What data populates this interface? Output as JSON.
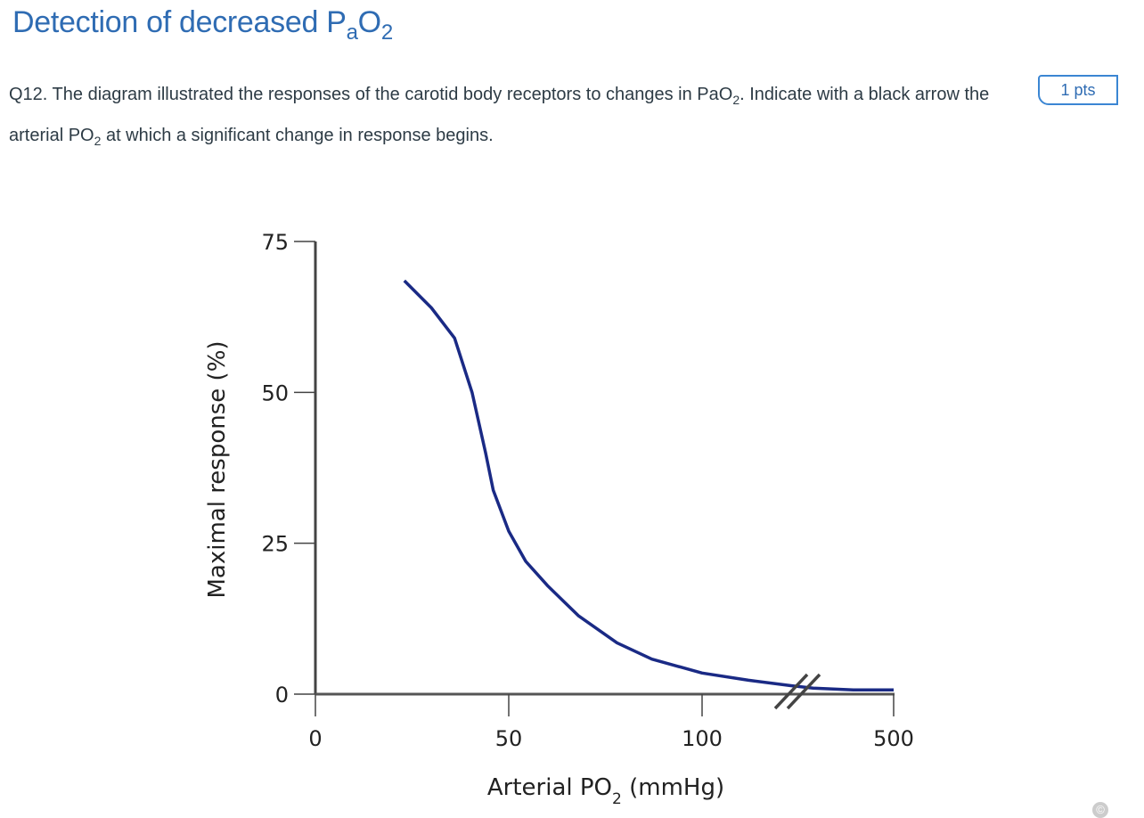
{
  "header": {
    "title": "Detection of decreased P",
    "title_sub": "a",
    "title_end": "O",
    "title_sub2": "2"
  },
  "question": {
    "part1": "Q12. The diagram illustrated the responses of the carotid body receptors to changes in PaO",
    "sub1": "2",
    "part2": ". Indicate with a black arrow the arterial PO",
    "sub2": "2",
    "part3": " at which a significant change in response begins.",
    "points": "1 pts"
  },
  "chart_data": {
    "type": "line",
    "xlabel": "Arterial PO",
    "xlabel_sub": "2",
    "xlabel_unit": " (mmHg)",
    "ylabel": "Maximal response (%)",
    "x_ticks": [
      "0",
      "50",
      "100",
      "500"
    ],
    "y_ticks": [
      "0",
      "25",
      "50",
      "75"
    ],
    "ylim": [
      0,
      75
    ],
    "axis_break": "between 100 and 500",
    "grid": false,
    "series": [
      {
        "color": "#1a2a85",
        "points": [
          {
            "x": 23,
            "y": 68.5
          },
          {
            "x": 30,
            "y": 64
          },
          {
            "x": 36,
            "y": 59
          },
          {
            "x": 40.5,
            "y": 50
          },
          {
            "x": 44,
            "y": 40
          },
          {
            "x": 46,
            "y": 33.8
          },
          {
            "x": 50,
            "y": 27
          },
          {
            "x": 54.4,
            "y": 22
          },
          {
            "x": 60,
            "y": 18
          },
          {
            "x": 68,
            "y": 13
          },
          {
            "x": 78,
            "y": 8.5
          },
          {
            "x": 87,
            "y": 5.8
          },
          {
            "x": 100,
            "y": 3.5
          },
          {
            "x": 112,
            "y": 2.3
          },
          {
            "x": 123,
            "y": 1.4
          },
          {
            "x": 200,
            "y": 1
          },
          {
            "x": 350,
            "y": 0.7
          },
          {
            "x": 500,
            "y": 0.7
          }
        ]
      }
    ]
  },
  "copyright_icon": "copyright-icon"
}
